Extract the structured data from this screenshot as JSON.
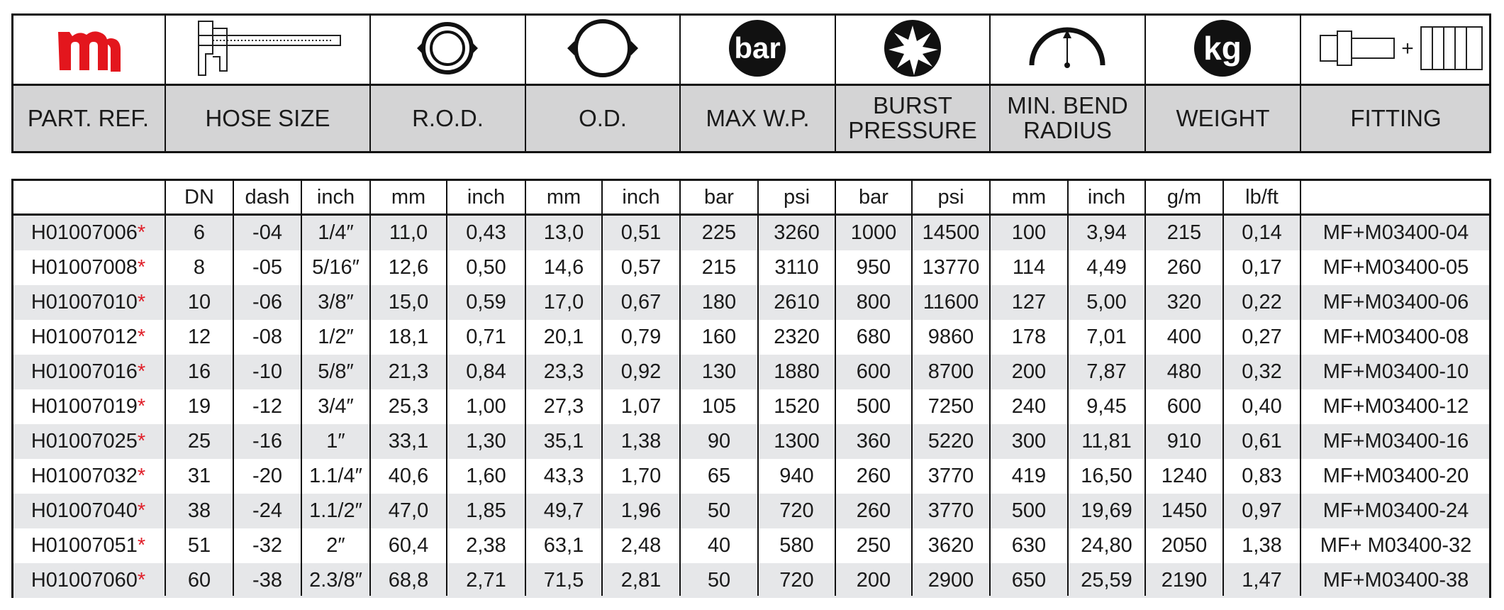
{
  "header": {
    "columns": [
      {
        "label": "PART. REF."
      },
      {
        "label": "HOSE SIZE"
      },
      {
        "label": "R.O.D."
      },
      {
        "label": "O.D."
      },
      {
        "label": "MAX W.P.",
        "icon_text": "bar"
      },
      {
        "label": "BURST PRESSURE"
      },
      {
        "label": "MIN. BEND RADIUS"
      },
      {
        "label": "WEIGHT",
        "icon_text": "kg"
      },
      {
        "label": "FITTING",
        "icon_text": "+"
      }
    ]
  },
  "table": {
    "subheaders": [
      "DN",
      "dash",
      "inch",
      "mm",
      "inch",
      "mm",
      "inch",
      "bar",
      "psi",
      "bar",
      "psi",
      "mm",
      "inch",
      "g/m",
      "lb/ft"
    ],
    "rows": [
      {
        "part": "H01007006",
        "mark": "*",
        "values": [
          "6",
          "-04",
          "1/4″",
          "11,0",
          "0,43",
          "13,0",
          "0,51",
          "225",
          "3260",
          "1000",
          "14500",
          "100",
          "3,94",
          "215",
          "0,14"
        ],
        "fitting": "MF+M03400-04"
      },
      {
        "part": "H01007008",
        "mark": "*",
        "values": [
          "8",
          "-05",
          "5/16″",
          "12,6",
          "0,50",
          "14,6",
          "0,57",
          "215",
          "3110",
          "950",
          "13770",
          "114",
          "4,49",
          "260",
          "0,17"
        ],
        "fitting": "MF+M03400-05"
      },
      {
        "part": "H01007010",
        "mark": "*",
        "values": [
          "10",
          "-06",
          "3/8″",
          "15,0",
          "0,59",
          "17,0",
          "0,67",
          "180",
          "2610",
          "800",
          "11600",
          "127",
          "5,00",
          "320",
          "0,22"
        ],
        "fitting": "MF+M03400-06"
      },
      {
        "part": "H01007012",
        "mark": "*",
        "values": [
          "12",
          "-08",
          "1/2″",
          "18,1",
          "0,71",
          "20,1",
          "0,79",
          "160",
          "2320",
          "680",
          "9860",
          "178",
          "7,01",
          "400",
          "0,27"
        ],
        "fitting": "MF+M03400-08"
      },
      {
        "part": "H01007016",
        "mark": "*",
        "values": [
          "16",
          "-10",
          "5/8″",
          "21,3",
          "0,84",
          "23,3",
          "0,92",
          "130",
          "1880",
          "600",
          "8700",
          "200",
          "7,87",
          "480",
          "0,32"
        ],
        "fitting": "MF+M03400-10"
      },
      {
        "part": "H01007019",
        "mark": "*",
        "values": [
          "19",
          "-12",
          "3/4″",
          "25,3",
          "1,00",
          "27,3",
          "1,07",
          "105",
          "1520",
          "500",
          "7250",
          "240",
          "9,45",
          "600",
          "0,40"
        ],
        "fitting": "MF+M03400-12"
      },
      {
        "part": "H01007025",
        "mark": "*",
        "values": [
          "25",
          "-16",
          "1″",
          "33,1",
          "1,30",
          "35,1",
          "1,38",
          "90",
          "1300",
          "360",
          "5220",
          "300",
          "11,81",
          "910",
          "0,61"
        ],
        "fitting": "MF+M03400-16"
      },
      {
        "part": "H01007032",
        "mark": "*",
        "values": [
          "31",
          "-20",
          "1.1/4″",
          "40,6",
          "1,60",
          "43,3",
          "1,70",
          "65",
          "940",
          "260",
          "3770",
          "419",
          "16,50",
          "1240",
          "0,83"
        ],
        "fitting": "MF+M03400-20"
      },
      {
        "part": "H01007040",
        "mark": "*",
        "values": [
          "38",
          "-24",
          "1.1/2″",
          "47,0",
          "1,85",
          "49,7",
          "1,96",
          "50",
          "720",
          "260",
          "3770",
          "500",
          "19,69",
          "1450",
          "0,97"
        ],
        "fitting": "MF+M03400-24"
      },
      {
        "part": "H01007051",
        "mark": "*",
        "values": [
          "51",
          "-32",
          "2″",
          "60,4",
          "2,38",
          "63,1",
          "2,48",
          "40",
          "580",
          "250",
          "3620",
          "630",
          "24,80",
          "2050",
          "1,38"
        ],
        "fitting": "MF+ M03400-32"
      },
      {
        "part": "H01007060",
        "mark": "*",
        "values": [
          "60",
          "-38",
          "2.3/8″",
          "68,8",
          "2,71",
          "71,5",
          "2,81",
          "50",
          "720",
          "200",
          "2900",
          "650",
          "25,59",
          "2190",
          "1,47"
        ],
        "fitting": "MF+M03400-38"
      }
    ]
  }
}
